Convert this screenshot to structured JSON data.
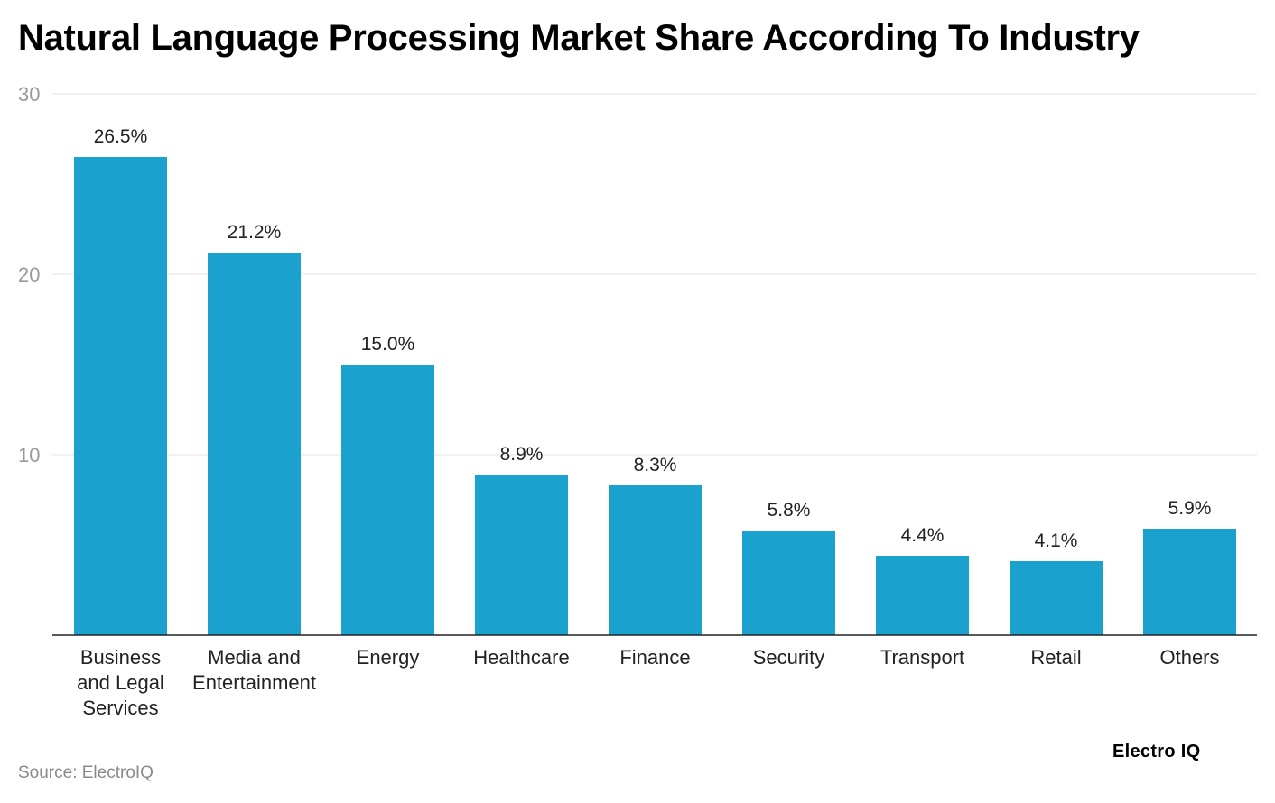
{
  "title": "Natural Language Processing Market Share According To Industry",
  "source": "Source: ElectroIQ",
  "brand": "Electro IQ",
  "colors": {
    "bar": "#1aa1cd",
    "grid": "#e3e3e3",
    "axis": "#222222"
  },
  "chart_data": {
    "type": "bar",
    "categories": [
      [
        "Business",
        "and Legal",
        "Services"
      ],
      [
        "Media and",
        "Entertainment"
      ],
      [
        "Energy"
      ],
      [
        "Healthcare"
      ],
      [
        "Finance"
      ],
      [
        "Security"
      ],
      [
        "Transport"
      ],
      [
        "Retail"
      ],
      [
        "Others"
      ]
    ],
    "values": [
      26.5,
      21.2,
      15.0,
      8.9,
      8.3,
      5.8,
      4.4,
      4.1,
      5.9
    ],
    "labels": [
      "26.5%",
      "21.2%",
      "15.0%",
      "8.9%",
      "8.3%",
      "5.8%",
      "4.4%",
      "4.1%",
      "5.9%"
    ],
    "yticks": [
      10,
      20,
      30
    ],
    "ylim": [
      0,
      30
    ],
    "grid": true,
    "legend": "none"
  }
}
